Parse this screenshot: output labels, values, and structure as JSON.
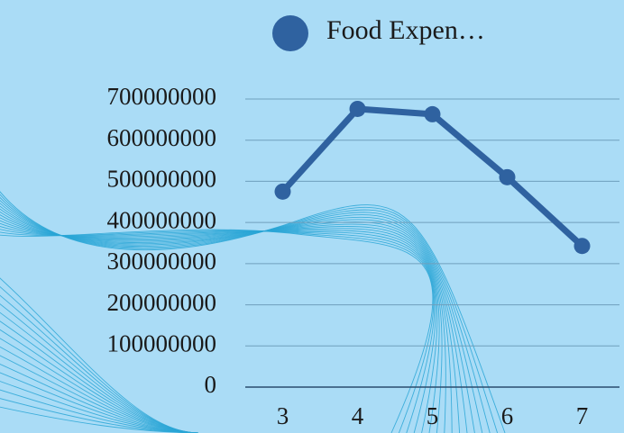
{
  "chart_data": {
    "type": "line",
    "categories": [
      "3",
      "4",
      "5",
      "6",
      "7"
    ],
    "series": [
      {
        "name": "Food Expen…",
        "color": "#2f62a0",
        "values": [
          475000000,
          676000000,
          663000000,
          510000000,
          343000000
        ]
      }
    ],
    "ylim": [
      0,
      700000000
    ],
    "yticks": [
      0,
      100000000,
      200000000,
      300000000,
      400000000,
      500000000,
      600000000,
      700000000
    ],
    "grid": true,
    "legend": "top"
  }
}
